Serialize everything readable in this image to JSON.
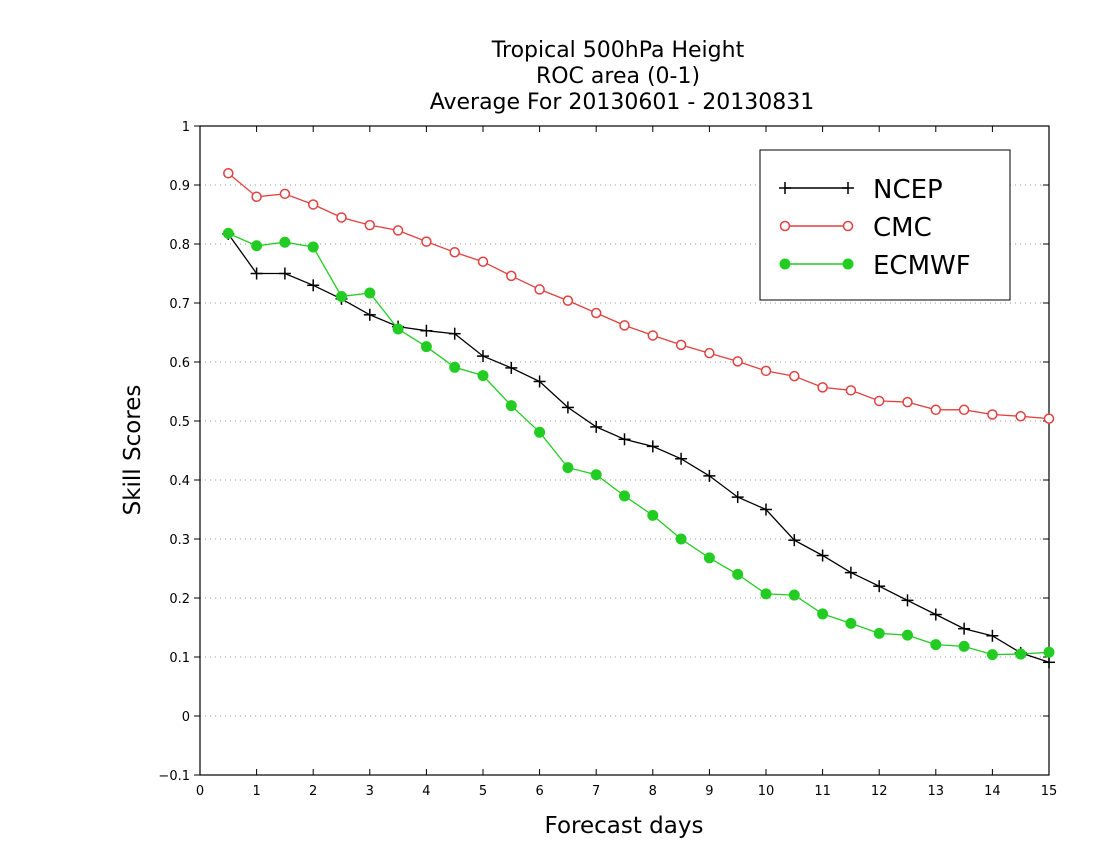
{
  "chart_data": {
    "type": "line",
    "title_lines": [
      "Tropical 500hPa Height",
      "ROC area (0-1)",
      "Average For 20130601 - 20130831"
    ],
    "xlabel": "Forecast days",
    "ylabel": "Skill Scores",
    "xlim": [
      0,
      15
    ],
    "ylim": [
      -0.1,
      1
    ],
    "x_ticks": [
      "0",
      "1",
      "2",
      "3",
      "4",
      "5",
      "6",
      "7",
      "8",
      "9",
      "10",
      "11",
      "12",
      "13",
      "14",
      "15"
    ],
    "y_ticks": [
      "−0.1",
      "0",
      "0.1",
      "0.2",
      "0.3",
      "0.4",
      "0.5",
      "0.6",
      "0.7",
      "0.8",
      "0.9",
      "1"
    ],
    "grid": true,
    "legend_position": "top-right",
    "x": [
      0.5,
      1,
      1.5,
      2,
      2.5,
      3,
      3.5,
      4,
      4.5,
      5,
      5.5,
      6,
      6.5,
      7,
      7.5,
      8,
      8.5,
      9,
      9.5,
      10,
      10.5,
      11,
      11.5,
      12,
      12.5,
      13,
      13.5,
      14,
      14.5,
      15
    ],
    "series": [
      {
        "name": "NCEP",
        "color": "#000000",
        "marker": "plus",
        "values": [
          0.817,
          0.75,
          0.75,
          0.73,
          0.707,
          0.68,
          0.66,
          0.653,
          0.648,
          0.61,
          0.59,
          0.567,
          0.523,
          0.49,
          0.469,
          0.457,
          0.436,
          0.407,
          0.371,
          0.35,
          0.298,
          0.272,
          0.243,
          0.22,
          0.196,
          0.172,
          0.148,
          0.136,
          0.107,
          0.091
        ]
      },
      {
        "name": "CMC",
        "color": "#e04040",
        "marker": "open-circle",
        "values": [
          0.92,
          0.88,
          0.885,
          0.867,
          0.845,
          0.832,
          0.823,
          0.804,
          0.786,
          0.77,
          0.746,
          0.723,
          0.704,
          0.683,
          0.662,
          0.645,
          0.629,
          0.615,
          0.601,
          0.585,
          0.576,
          0.557,
          0.552,
          0.534,
          0.532,
          0.519,
          0.519,
          0.511,
          0.508,
          0.504
        ]
      },
      {
        "name": "ECMWF",
        "color": "#22cc22",
        "marker": "filled-circle",
        "values": [
          0.818,
          0.797,
          0.803,
          0.795,
          0.711,
          0.717,
          0.656,
          0.626,
          0.591,
          0.577,
          0.526,
          0.481,
          0.421,
          0.409,
          0.373,
          0.34,
          0.3,
          0.268,
          0.24,
          0.207,
          0.205,
          0.173,
          0.157,
          0.14,
          0.137,
          0.121,
          0.118,
          0.104,
          0.105,
          0.108
        ]
      }
    ]
  }
}
